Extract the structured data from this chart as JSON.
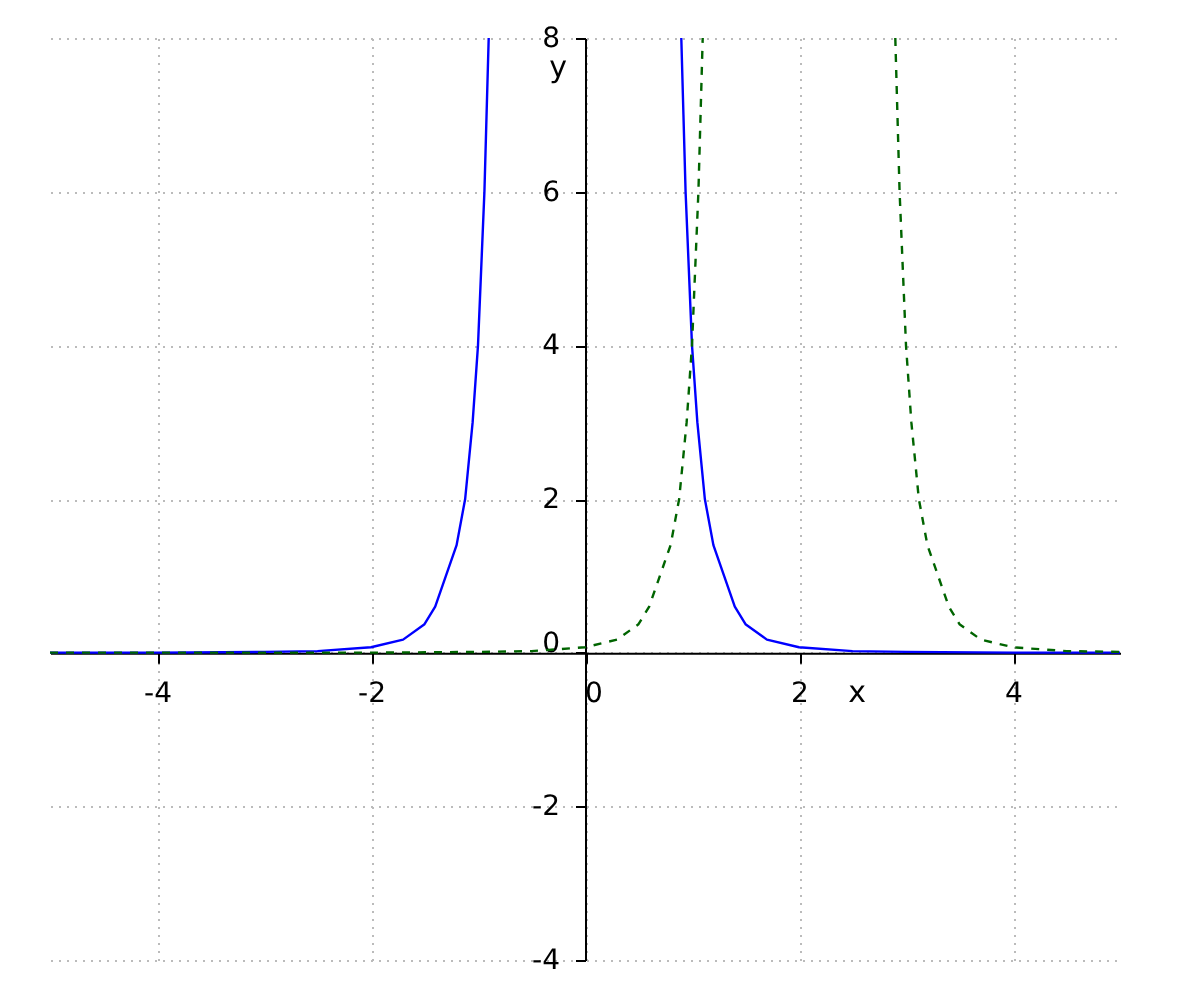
{
  "chart_data": {
    "type": "line",
    "xlabel": "x",
    "ylabel": "y",
    "xlim": [
      -5,
      5
    ],
    "ylim": [
      -4,
      8
    ],
    "xticks": [
      -4,
      -2,
      0,
      2,
      4
    ],
    "yticks": [
      -4,
      -2,
      0,
      2,
      4,
      6,
      8
    ],
    "grid": true,
    "series": [
      {
        "color": "#0000ff",
        "line_style": "solid",
        "x": [
          -5,
          -4,
          -3,
          -2.5,
          -2,
          -1.7,
          -1.5,
          -1.4,
          -1.3,
          -1.2,
          -1.12,
          -1.05,
          -1.0,
          -0.97,
          -0.94,
          -0.92,
          -0.9,
          0,
          0.9,
          0.92,
          0.94,
          0.97,
          1.0,
          1.05,
          1.12,
          1.2,
          1.3,
          1.4,
          1.5,
          1.7,
          2,
          2.5,
          3,
          4,
          5
        ],
        "values": [
          0,
          0,
          0.01,
          0.02,
          0.07,
          0.17,
          0.37,
          0.6,
          1.0,
          1.4,
          2,
          3,
          4,
          5,
          6,
          7,
          8,
          null,
          8,
          7,
          6,
          5,
          4,
          3,
          2,
          1.4,
          1.0,
          0.6,
          0.37,
          0.17,
          0.07,
          0.02,
          0.01,
          0,
          0
        ]
      },
      {
        "color": "#006400",
        "line_style": "dashed",
        "x": [
          -5,
          -3,
          -2,
          -1,
          -0.5,
          0,
          0.3,
          0.5,
          0.6,
          0.7,
          0.8,
          0.88,
          0.95,
          1.0,
          1.03,
          1.06,
          1.08,
          1.1,
          2,
          2.9,
          2.92,
          2.94,
          2.97,
          3.0,
          3.05,
          3.12,
          3.2,
          3.3,
          3.4,
          3.5,
          3.7,
          4,
          4.5,
          5
        ],
        "values": [
          0,
          0,
          0,
          0.01,
          0.02,
          0.07,
          0.17,
          0.37,
          0.6,
          1.0,
          1.4,
          2,
          3,
          4,
          5,
          6,
          7,
          8,
          null,
          8,
          7,
          6,
          5,
          4,
          3,
          2,
          1.4,
          1.0,
          0.6,
          0.37,
          0.17,
          0.07,
          0.02,
          0.01
        ]
      }
    ]
  }
}
